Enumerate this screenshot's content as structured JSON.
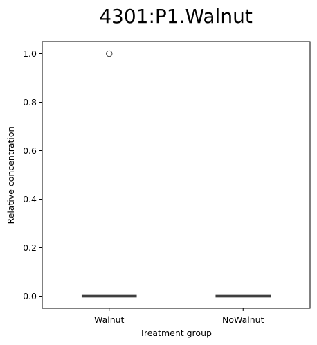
{
  "chart_data": {
    "type": "box",
    "title": "4301:P1.Walnut",
    "xlabel": "Treatment group",
    "ylabel": "Relative concentration",
    "categories": [
      "Walnut",
      "NoWalnut"
    ],
    "ylim": [
      -0.05,
      1.05
    ],
    "yticks": [
      0.0,
      0.2,
      0.4,
      0.6,
      0.8,
      1.0
    ],
    "ytick_labels": [
      "0.0",
      "0.2",
      "0.4",
      "0.6",
      "0.8",
      "1.0"
    ],
    "boxes": [
      {
        "category": "Walnut",
        "q1": 0.0,
        "median": 0.0,
        "q3": 0.0,
        "whisker_low": 0.0,
        "whisker_high": 0.0,
        "outliers": [
          1.0
        ]
      },
      {
        "category": "NoWalnut",
        "q1": 0.0,
        "median": 0.0,
        "q3": 0.0,
        "whisker_low": 0.0,
        "whisker_high": 0.0,
        "outliers": []
      }
    ],
    "grid": false,
    "colors": {
      "box_line": "#3f3f3f",
      "axis": "#000000",
      "outlier_edge": "#3f3f3f"
    }
  }
}
